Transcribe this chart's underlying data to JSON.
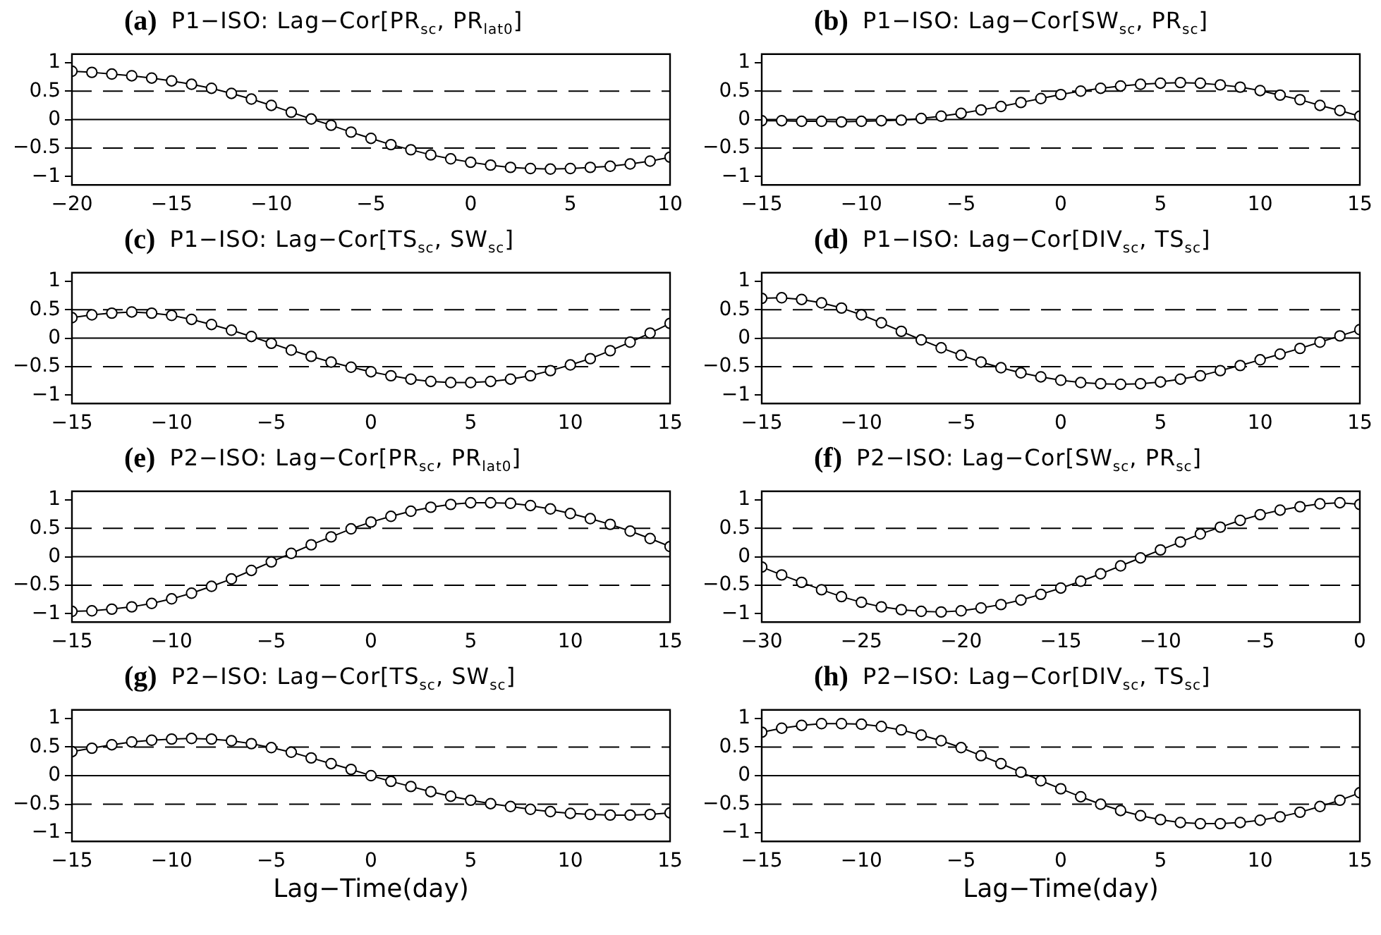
{
  "chart_data": [
    {
      "type": "line",
      "annotations": [
        "(a)"
      ],
      "title": "P1−ISO: Lag−Cor[PR$_{sc}$, PR$_{lat0}$]",
      "marker": "circle",
      "line_style": "solid",
      "xlim": [
        -20,
        10
      ],
      "xticks": [
        -20,
        -15,
        -10,
        -5,
        0,
        5,
        10
      ],
      "ylim": [
        -1.15,
        1.15
      ],
      "yticks": [
        -1,
        -0.5,
        0,
        0.5,
        1
      ],
      "ref_lines": [
        {
          "axis": "y",
          "value": 0,
          "line_style": "solid"
        },
        {
          "axis": "y",
          "value": 0.5,
          "line_style": "dashed"
        },
        {
          "axis": "y",
          "value": -0.5,
          "line_style": "dashed"
        }
      ],
      "x": [
        -20,
        -19,
        -18,
        -17,
        -16,
        -15,
        -14,
        -13,
        -12,
        -11,
        -10,
        -9,
        -8,
        -7,
        -6,
        -5,
        -4,
        -3,
        -2,
        -1,
        0,
        1,
        2,
        3,
        4,
        5,
        6,
        7,
        8,
        9,
        10
      ],
      "values": [
        0.85,
        0.83,
        0.8,
        0.77,
        0.73,
        0.68,
        0.62,
        0.55,
        0.46,
        0.36,
        0.25,
        0.13,
        0.01,
        -0.1,
        -0.22,
        -0.33,
        -0.44,
        -0.53,
        -0.62,
        -0.69,
        -0.75,
        -0.8,
        -0.84,
        -0.86,
        -0.87,
        -0.86,
        -0.84,
        -0.82,
        -0.78,
        -0.73,
        -0.66
      ]
    },
    {
      "type": "line",
      "annotations": [
        "(b)"
      ],
      "title": "P1−ISO: Lag−Cor[SW$_{sc}$, PR$_{sc}$]",
      "marker": "circle",
      "line_style": "solid",
      "xlim": [
        -15,
        15
      ],
      "xticks": [
        -15,
        -10,
        -5,
        0,
        5,
        10,
        15
      ],
      "ylim": [
        -1.15,
        1.15
      ],
      "yticks": [
        -1,
        -0.5,
        0,
        0.5,
        1
      ],
      "ref_lines": [
        {
          "axis": "y",
          "value": 0,
          "line_style": "solid"
        },
        {
          "axis": "y",
          "value": 0.5,
          "line_style": "dashed"
        },
        {
          "axis": "y",
          "value": -0.5,
          "line_style": "dashed"
        }
      ],
      "x": [
        -15,
        -14,
        -13,
        -12,
        -11,
        -10,
        -9,
        -8,
        -7,
        -6,
        -5,
        -4,
        -3,
        -2,
        -1,
        0,
        1,
        2,
        3,
        4,
        5,
        6,
        7,
        8,
        9,
        10,
        11,
        12,
        13,
        14,
        15
      ],
      "values": [
        -0.02,
        -0.02,
        -0.03,
        -0.03,
        -0.04,
        -0.03,
        -0.02,
        -0.01,
        0.02,
        0.06,
        0.11,
        0.17,
        0.23,
        0.3,
        0.37,
        0.44,
        0.5,
        0.55,
        0.59,
        0.62,
        0.64,
        0.65,
        0.64,
        0.61,
        0.57,
        0.51,
        0.43,
        0.35,
        0.25,
        0.16,
        0.06
      ]
    },
    {
      "type": "line",
      "annotations": [
        "(c)"
      ],
      "title": "P1−ISO: Lag−Cor[TS$_{sc}$, SW$_{sc}$]",
      "marker": "circle",
      "line_style": "solid",
      "xlim": [
        -15,
        15
      ],
      "xticks": [
        -15,
        -10,
        -5,
        0,
        5,
        10,
        15
      ],
      "ylim": [
        -1.15,
        1.15
      ],
      "yticks": [
        -1,
        -0.5,
        0,
        0.5,
        1
      ],
      "ref_lines": [
        {
          "axis": "y",
          "value": 0,
          "line_style": "solid"
        },
        {
          "axis": "y",
          "value": 0.5,
          "line_style": "dashed"
        },
        {
          "axis": "y",
          "value": -0.5,
          "line_style": "dashed"
        }
      ],
      "x": [
        -15,
        -14,
        -13,
        -12,
        -11,
        -10,
        -9,
        -8,
        -7,
        -6,
        -5,
        -4,
        -3,
        -2,
        -1,
        0,
        1,
        2,
        3,
        4,
        5,
        6,
        7,
        8,
        9,
        10,
        11,
        12,
        13,
        14,
        15
      ],
      "values": [
        0.36,
        0.41,
        0.44,
        0.46,
        0.44,
        0.4,
        0.33,
        0.24,
        0.14,
        0.03,
        -0.09,
        -0.21,
        -0.32,
        -0.42,
        -0.51,
        -0.59,
        -0.66,
        -0.72,
        -0.76,
        -0.78,
        -0.78,
        -0.76,
        -0.72,
        -0.66,
        -0.57,
        -0.47,
        -0.36,
        -0.22,
        -0.07,
        0.09,
        0.26
      ]
    },
    {
      "type": "line",
      "annotations": [
        "(d)"
      ],
      "title": "P1−ISO: Lag−Cor[DIV$_{sc}$, TS$_{sc}$]",
      "marker": "circle",
      "line_style": "solid",
      "xlim": [
        -15,
        15
      ],
      "xticks": [
        -15,
        -10,
        -5,
        0,
        5,
        10,
        15
      ],
      "ylim": [
        -1.15,
        1.15
      ],
      "yticks": [
        -1,
        -0.5,
        0,
        0.5,
        1
      ],
      "ref_lines": [
        {
          "axis": "y",
          "value": 0,
          "line_style": "solid"
        },
        {
          "axis": "y",
          "value": 0.5,
          "line_style": "dashed"
        },
        {
          "axis": "y",
          "value": -0.5,
          "line_style": "dashed"
        }
      ],
      "x": [
        -15,
        -14,
        -13,
        -12,
        -11,
        -10,
        -9,
        -8,
        -7,
        -6,
        -5,
        -4,
        -3,
        -2,
        -1,
        0,
        1,
        2,
        3,
        4,
        5,
        6,
        7,
        8,
        9,
        10,
        11,
        12,
        13,
        14,
        15
      ],
      "values": [
        0.7,
        0.71,
        0.68,
        0.62,
        0.53,
        0.41,
        0.27,
        0.12,
        -0.03,
        -0.17,
        -0.3,
        -0.42,
        -0.52,
        -0.61,
        -0.68,
        -0.74,
        -0.78,
        -0.8,
        -0.81,
        -0.8,
        -0.77,
        -0.72,
        -0.66,
        -0.57,
        -0.48,
        -0.38,
        -0.28,
        -0.18,
        -0.07,
        0.04,
        0.15
      ]
    },
    {
      "type": "line",
      "annotations": [
        "(e)"
      ],
      "title": "P2−ISO: Lag−Cor[PR$_{sc}$, PR$_{lat0}$]",
      "marker": "circle",
      "line_style": "solid",
      "xlim": [
        -15,
        15
      ],
      "xticks": [
        -15,
        -10,
        -5,
        0,
        5,
        10,
        15
      ],
      "ylim": [
        -1.15,
        1.15
      ],
      "yticks": [
        -1,
        -0.5,
        0,
        0.5,
        1
      ],
      "ref_lines": [
        {
          "axis": "y",
          "value": 0,
          "line_style": "solid"
        },
        {
          "axis": "y",
          "value": 0.5,
          "line_style": "dashed"
        },
        {
          "axis": "y",
          "value": -0.5,
          "line_style": "dashed"
        }
      ],
      "x": [
        -15,
        -14,
        -13,
        -12,
        -11,
        -10,
        -9,
        -8,
        -7,
        -6,
        -5,
        -4,
        -3,
        -2,
        -1,
        0,
        1,
        2,
        3,
        4,
        5,
        6,
        7,
        8,
        9,
        10,
        11,
        12,
        13,
        14,
        15
      ],
      "values": [
        -0.96,
        -0.95,
        -0.92,
        -0.88,
        -0.82,
        -0.74,
        -0.64,
        -0.52,
        -0.39,
        -0.24,
        -0.09,
        0.06,
        0.21,
        0.35,
        0.49,
        0.61,
        0.71,
        0.8,
        0.87,
        0.92,
        0.95,
        0.95,
        0.94,
        0.9,
        0.84,
        0.76,
        0.67,
        0.57,
        0.45,
        0.32,
        0.18
      ]
    },
    {
      "type": "line",
      "annotations": [
        "(f)"
      ],
      "title": "P2−ISO: Lag−Cor[SW$_{sc}$, PR$_{sc}$]",
      "marker": "circle",
      "line_style": "solid",
      "xlim": [
        -30,
        0
      ],
      "xticks": [
        -30,
        -25,
        -20,
        -15,
        -10,
        -5,
        0
      ],
      "ylim": [
        -1.15,
        1.15
      ],
      "yticks": [
        -1,
        -0.5,
        0,
        0.5,
        1
      ],
      "ref_lines": [
        {
          "axis": "y",
          "value": 0,
          "line_style": "solid"
        },
        {
          "axis": "y",
          "value": 0.5,
          "line_style": "dashed"
        },
        {
          "axis": "y",
          "value": -0.5,
          "line_style": "dashed"
        }
      ],
      "x": [
        -30,
        -29,
        -28,
        -27,
        -26,
        -25,
        -24,
        -23,
        -22,
        -21,
        -20,
        -19,
        -18,
        -17,
        -16,
        -15,
        -14,
        -13,
        -12,
        -11,
        -10,
        -9,
        -8,
        -7,
        -6,
        -5,
        -4,
        -3,
        -2,
        -1,
        0
      ],
      "values": [
        -0.18,
        -0.32,
        -0.45,
        -0.58,
        -0.7,
        -0.8,
        -0.88,
        -0.93,
        -0.96,
        -0.97,
        -0.95,
        -0.9,
        -0.84,
        -0.76,
        -0.66,
        -0.55,
        -0.43,
        -0.3,
        -0.16,
        -0.02,
        0.12,
        0.26,
        0.4,
        0.52,
        0.64,
        0.74,
        0.82,
        0.88,
        0.93,
        0.95,
        0.92
      ]
    },
    {
      "type": "line",
      "annotations": [
        "(g)"
      ],
      "title": "P2−ISO: Lag−Cor[TS$_{sc}$, SW$_{sc}$]",
      "xlabel": "Lag−Time(day)",
      "marker": "circle",
      "line_style": "solid",
      "xlim": [
        -15,
        15
      ],
      "xticks": [
        -15,
        -10,
        -5,
        0,
        5,
        10,
        15
      ],
      "ylim": [
        -1.15,
        1.15
      ],
      "yticks": [
        -1,
        -0.5,
        0,
        0.5,
        1
      ],
      "ref_lines": [
        {
          "axis": "y",
          "value": 0,
          "line_style": "solid"
        },
        {
          "axis": "y",
          "value": 0.5,
          "line_style": "dashed"
        },
        {
          "axis": "y",
          "value": -0.5,
          "line_style": "dashed"
        }
      ],
      "x": [
        -15,
        -14,
        -13,
        -12,
        -11,
        -10,
        -9,
        -8,
        -7,
        -6,
        -5,
        -4,
        -3,
        -2,
        -1,
        0,
        1,
        2,
        3,
        4,
        5,
        6,
        7,
        8,
        9,
        10,
        11,
        12,
        13,
        14,
        15
      ],
      "values": [
        0.42,
        0.48,
        0.54,
        0.59,
        0.62,
        0.64,
        0.65,
        0.64,
        0.61,
        0.56,
        0.49,
        0.41,
        0.31,
        0.21,
        0.11,
        0.0,
        -0.1,
        -0.19,
        -0.28,
        -0.36,
        -0.43,
        -0.49,
        -0.54,
        -0.59,
        -0.63,
        -0.66,
        -0.68,
        -0.69,
        -0.69,
        -0.68,
        -0.65
      ]
    },
    {
      "type": "line",
      "annotations": [
        "(h)"
      ],
      "title": "P2−ISO: Lag−Cor[DIV$_{sc}$, TS$_{sc}$]",
      "xlabel": "Lag−Time(day)",
      "marker": "circle",
      "line_style": "solid",
      "xlim": [
        -15,
        15
      ],
      "xticks": [
        -15,
        -10,
        -5,
        0,
        5,
        10,
        15
      ],
      "ylim": [
        -1.15,
        1.15
      ],
      "yticks": [
        -1,
        -0.5,
        0,
        0.5,
        1
      ],
      "ref_lines": [
        {
          "axis": "y",
          "value": 0,
          "line_style": "solid"
        },
        {
          "axis": "y",
          "value": 0.5,
          "line_style": "dashed"
        },
        {
          "axis": "y",
          "value": -0.5,
          "line_style": "dashed"
        }
      ],
      "x": [
        -15,
        -14,
        -13,
        -12,
        -11,
        -10,
        -9,
        -8,
        -7,
        -6,
        -5,
        -4,
        -3,
        -2,
        -1,
        0,
        1,
        2,
        3,
        4,
        5,
        6,
        7,
        8,
        9,
        10,
        11,
        12,
        13,
        14,
        15
      ],
      "values": [
        0.76,
        0.83,
        0.88,
        0.91,
        0.91,
        0.9,
        0.86,
        0.8,
        0.71,
        0.61,
        0.49,
        0.35,
        0.21,
        0.06,
        -0.09,
        -0.23,
        -0.37,
        -0.5,
        -0.61,
        -0.7,
        -0.77,
        -0.82,
        -0.84,
        -0.84,
        -0.82,
        -0.78,
        -0.72,
        -0.64,
        -0.54,
        -0.43,
        -0.3
      ]
    }
  ]
}
